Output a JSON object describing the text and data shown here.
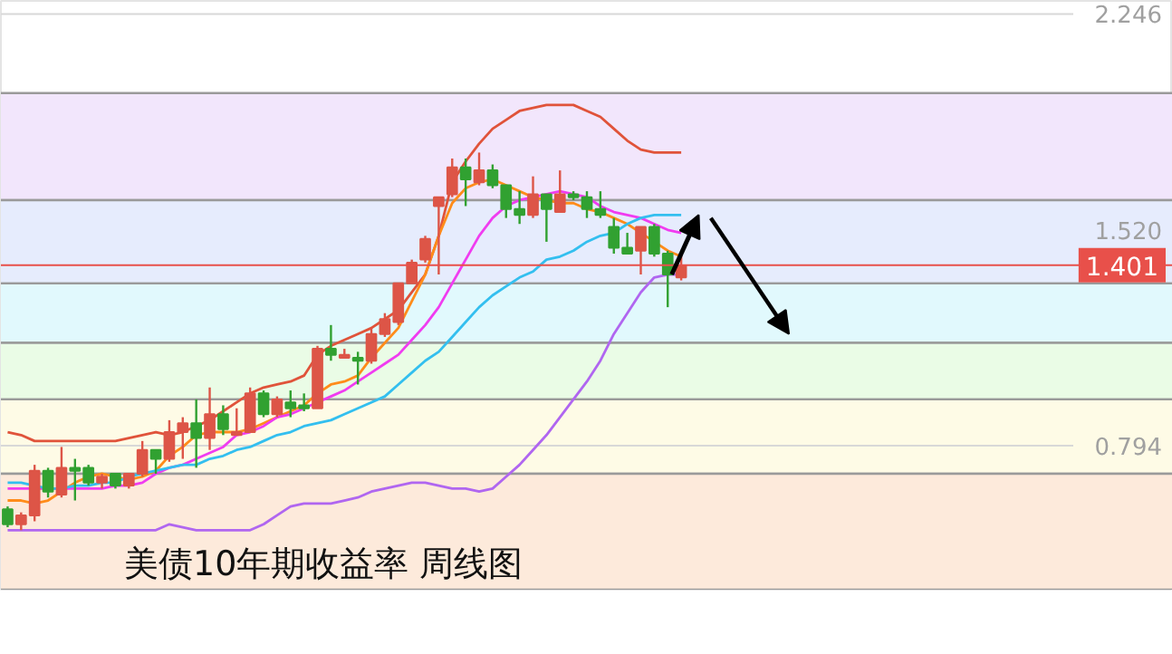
{
  "chart_data": {
    "type": "candlestick",
    "title": "美债10年期收益率 周线图",
    "categories": [
      null,
      null,
      null,
      null,
      null,
      null,
      null,
      null,
      null,
      null,
      null,
      null,
      null,
      null,
      null,
      null,
      null,
      null,
      null,
      null,
      null,
      null,
      null,
      null,
      null,
      null,
      null,
      null,
      null,
      null,
      null,
      null,
      null,
      null,
      null,
      null,
      null,
      null,
      null,
      null,
      null,
      null,
      null,
      null,
      null,
      null,
      null,
      null,
      null,
      null,
      null,
      null,
      null,
      null,
      null,
      null,
      null,
      null,
      null,
      null,
      null,
      null,
      null,
      null,
      null,
      null,
      null,
      null,
      null,
      null,
      null,
      null,
      null,
      null,
      null,
      null,
      null,
      null,
      null,
      null,
      null,
      null,
      null,
      null,
      null,
      null,
      null
    ],
    "ohlc": [
      [
        0.58,
        0.59,
        0.52,
        0.53
      ],
      [
        0.53,
        0.57,
        0.51,
        0.56
      ],
      [
        0.56,
        0.73,
        0.54,
        0.71
      ],
      [
        0.71,
        0.72,
        0.62,
        0.64
      ],
      [
        0.63,
        0.79,
        0.62,
        0.72
      ],
      [
        0.72,
        0.75,
        0.61,
        0.71
      ],
      [
        0.72,
        0.73,
        0.66,
        0.67
      ],
      [
        0.67,
        0.7,
        0.65,
        0.69
      ],
      [
        0.7,
        0.7,
        0.65,
        0.66
      ],
      [
        0.66,
        0.7,
        0.65,
        0.7
      ],
      [
        0.7,
        0.81,
        0.69,
        0.78
      ],
      [
        0.78,
        0.78,
        0.7,
        0.75
      ],
      [
        0.75,
        0.88,
        0.74,
        0.84
      ],
      [
        0.84,
        0.89,
        0.75,
        0.87
      ],
      [
        0.87,
        0.95,
        0.72,
        0.82
      ],
      [
        0.82,
        0.99,
        0.78,
        0.9
      ],
      [
        0.9,
        0.93,
        0.83,
        0.85
      ],
      [
        0.83,
        0.92,
        0.83,
        0.84
      ],
      [
        0.84,
        0.99,
        0.84,
        0.97
      ],
      [
        0.97,
        0.98,
        0.89,
        0.9
      ],
      [
        0.9,
        0.96,
        0.89,
        0.95
      ],
      [
        0.94,
        0.98,
        0.89,
        0.92
      ],
      [
        0.93,
        0.97,
        0.91,
        0.92
      ],
      [
        0.92,
        1.13,
        0.92,
        1.12
      ],
      [
        1.12,
        1.2,
        1.08,
        1.1
      ],
      [
        1.09,
        1.12,
        1.09,
        1.1
      ],
      [
        1.09,
        1.11,
        1.0,
        1.08
      ],
      [
        1.08,
        1.19,
        1.07,
        1.17
      ],
      [
        1.17,
        1.24,
        1.16,
        1.22
      ],
      [
        1.21,
        1.34,
        1.2,
        1.34
      ],
      [
        1.34,
        1.42,
        1.34,
        1.41
      ],
      [
        1.42,
        1.5,
        1.41,
        1.49
      ],
      [
        1.6,
        1.63,
        1.37,
        1.63
      ],
      [
        1.64,
        1.76,
        1.63,
        1.73
      ],
      [
        1.73,
        1.76,
        1.6,
        1.69
      ],
      [
        1.68,
        1.78,
        1.67,
        1.72
      ],
      [
        1.72,
        1.74,
        1.66,
        1.67
      ],
      [
        1.67,
        1.67,
        1.56,
        1.59
      ],
      [
        1.59,
        1.65,
        1.54,
        1.57
      ],
      [
        1.57,
        1.7,
        1.56,
        1.64
      ],
      [
        1.64,
        1.64,
        1.48,
        1.59
      ],
      [
        1.58,
        1.72,
        1.58,
        1.64
      ],
      [
        1.64,
        1.65,
        1.62,
        1.63
      ],
      [
        1.63,
        1.65,
        1.56,
        1.59
      ],
      [
        1.59,
        1.65,
        1.56,
        1.57
      ],
      [
        1.53,
        1.56,
        1.44,
        1.46
      ],
      [
        1.46,
        1.51,
        1.44,
        1.44
      ],
      [
        1.45,
        1.53,
        1.37,
        1.53
      ],
      [
        1.53,
        1.54,
        1.43,
        1.44
      ],
      [
        1.44,
        1.45,
        1.26,
        1.37
      ],
      [
        1.36,
        1.44,
        1.35,
        1.4
      ],
      null,
      null,
      null,
      null,
      null,
      null,
      null,
      null,
      null,
      null,
      null,
      null,
      null,
      null,
      null,
      null,
      null,
      null,
      null,
      null,
      null,
      null,
      null,
      null,
      null,
      null,
      null,
      null,
      null,
      null,
      null,
      null,
      null,
      null,
      null,
      null
    ],
    "colors": [
      "#31a131",
      "#dd5547",
      "#dd5547",
      "#31a131",
      "#dd5547",
      "#31a131",
      "#31a131",
      "#dd5547",
      "#31a131",
      "#dd5547",
      "#dd5547",
      "#31a131",
      "#dd5547",
      "#dd5547",
      "#31a131",
      "#dd5547",
      "#31a131",
      "#dd5547",
      "#dd5547",
      "#31a131",
      "#dd5547",
      "#31a131",
      "#31a131",
      "#dd5547",
      "#31a131",
      "#dd5547",
      "#31a131",
      "#dd5547",
      "#dd5547",
      "#dd5547",
      "#dd5547",
      "#dd5547",
      "#dd5547",
      "#dd5547",
      "#31a131",
      "#dd5547",
      "#31a131",
      "#31a131",
      "#31a131",
      "#dd5547",
      "#31a131",
      "#dd5547",
      "#31a131",
      "#31a131",
      "#31a131",
      "#31a131",
      "#31a131",
      "#dd5547",
      "#31a131",
      "#31a131",
      "#dd5547",
      null,
      null,
      null,
      null,
      null,
      null,
      null,
      null,
      null,
      null,
      null,
      null,
      null,
      null,
      null,
      null,
      null,
      null,
      null,
      null,
      null,
      null,
      null,
      null,
      null,
      null,
      null,
      null,
      null,
      null,
      null,
      null,
      null,
      null,
      null,
      null
    ],
    "series": [
      {
        "type": "line",
        "color": "#e0533a",
        "values": [
          0.84,
          0.83,
          0.81,
          0.81,
          0.81,
          0.81,
          0.81,
          0.81,
          0.81,
          0.82,
          0.83,
          0.84,
          0.83,
          0.84,
          0.86,
          0.88,
          0.91,
          0.94,
          0.97,
          0.99,
          1.0,
          1.01,
          1.03,
          1.1,
          1.13,
          1.15,
          1.17,
          1.19,
          1.22,
          1.25,
          1.31,
          1.37,
          1.5,
          1.68,
          1.75,
          1.81,
          1.86,
          1.89,
          1.92,
          1.93,
          1.94,
          1.94,
          1.94,
          1.92,
          1.9,
          1.86,
          1.82,
          1.79,
          1.78,
          1.78,
          1.78,
          null,
          null,
          null,
          null,
          null,
          null,
          null,
          null,
          null,
          null,
          null,
          null,
          null,
          null,
          null,
          null,
          null,
          null,
          null,
          null,
          null,
          null,
          null,
          null,
          null,
          null,
          null,
          null,
          null,
          null,
          null,
          null,
          null,
          null,
          null,
          null
        ]
      },
      {
        "type": "line",
        "color": "#b066f0",
        "values": [
          0.51,
          0.51,
          0.51,
          0.51,
          0.51,
          0.51,
          0.51,
          0.51,
          0.51,
          0.51,
          0.51,
          0.51,
          0.53,
          0.52,
          0.51,
          0.51,
          0.51,
          0.51,
          0.51,
          0.53,
          0.56,
          0.59,
          0.6,
          0.6,
          0.6,
          0.61,
          0.62,
          0.64,
          0.65,
          0.66,
          0.67,
          0.67,
          0.66,
          0.65,
          0.65,
          0.64,
          0.65,
          0.69,
          0.73,
          0.78,
          0.83,
          0.89,
          0.95,
          1.01,
          1.08,
          1.17,
          1.24,
          1.31,
          1.36,
          1.37,
          1.37,
          null,
          null,
          null,
          null,
          null,
          null,
          null,
          null,
          null,
          null,
          null,
          null,
          null,
          null,
          null,
          null,
          null,
          null,
          null,
          null,
          null,
          null,
          null,
          null,
          null,
          null,
          null,
          null,
          null,
          null,
          null,
          null,
          null,
          null,
          null,
          null
        ]
      },
      {
        "type": "line",
        "color": "#ff8c1a",
        "values": [
          0.61,
          0.61,
          0.6,
          0.61,
          0.64,
          0.67,
          0.69,
          0.7,
          0.69,
          0.68,
          0.69,
          0.71,
          0.76,
          0.79,
          0.83,
          0.84,
          0.84,
          0.84,
          0.85,
          0.87,
          0.89,
          0.91,
          0.93,
          0.97,
          1.0,
          1.01,
          1.03,
          1.09,
          1.14,
          1.19,
          1.28,
          1.37,
          1.5,
          1.61,
          1.66,
          1.68,
          1.69,
          1.67,
          1.65,
          1.63,
          1.62,
          1.61,
          1.61,
          1.59,
          1.58,
          1.56,
          1.54,
          1.51,
          1.48,
          1.45,
          1.43,
          null,
          null,
          null,
          null,
          null,
          null,
          null,
          null,
          null,
          null,
          null,
          null,
          null,
          null,
          null,
          null,
          null,
          null,
          null,
          null,
          null,
          null,
          null,
          null,
          null,
          null,
          null,
          null,
          null,
          null,
          null,
          null,
          null,
          null,
          null,
          null
        ]
      },
      {
        "type": "line",
        "color": "#f03cf0",
        "values": [
          0.65,
          0.65,
          0.65,
          0.65,
          0.65,
          0.65,
          0.65,
          0.65,
          0.66,
          0.66,
          0.67,
          0.7,
          0.72,
          0.73,
          0.75,
          0.77,
          0.79,
          0.83,
          0.84,
          0.86,
          0.89,
          0.9,
          0.92,
          0.94,
          0.96,
          0.98,
          1.01,
          1.04,
          1.07,
          1.1,
          1.15,
          1.2,
          1.26,
          1.34,
          1.42,
          1.5,
          1.56,
          1.6,
          1.62,
          1.63,
          1.64,
          1.65,
          1.64,
          1.63,
          1.6,
          1.58,
          1.57,
          1.56,
          1.54,
          1.52,
          1.51,
          null,
          null,
          null,
          null,
          null,
          null,
          null,
          null,
          null,
          null,
          null,
          null,
          null,
          null,
          null,
          null,
          null,
          null,
          null,
          null,
          null,
          null,
          null,
          null,
          null,
          null,
          null,
          null,
          null,
          null,
          null,
          null,
          null,
          null,
          null,
          null
        ]
      },
      {
        "type": "line",
        "color": "#33bfef",
        "values": [
          0.67,
          0.67,
          0.66,
          0.65,
          0.65,
          0.66,
          0.66,
          0.67,
          0.67,
          0.69,
          0.7,
          0.71,
          0.72,
          0.73,
          0.73,
          0.75,
          0.76,
          0.78,
          0.79,
          0.81,
          0.83,
          0.84,
          0.86,
          0.87,
          0.88,
          0.9,
          0.92,
          0.94,
          0.96,
          1.0,
          1.04,
          1.08,
          1.11,
          1.16,
          1.21,
          1.26,
          1.3,
          1.33,
          1.36,
          1.38,
          1.42,
          1.43,
          1.45,
          1.48,
          1.5,
          1.51,
          1.54,
          1.56,
          1.57,
          1.57,
          1.57,
          null,
          null,
          null,
          null,
          null,
          null,
          null,
          null,
          null,
          null,
          null,
          null,
          null,
          null,
          null,
          null,
          null,
          null,
          null,
          null,
          null,
          null,
          null,
          null,
          null,
          null,
          null,
          null,
          null,
          null,
          null,
          null,
          null,
          null,
          null,
          null
        ]
      }
    ],
    "bands": [
      {
        "axis": "y",
        "from": 1.62,
        "to": 1.98,
        "color": "#f2e6fc"
      },
      {
        "axis": "y",
        "from": 1.34,
        "to": 1.62,
        "color": "#e6ecfd"
      },
      {
        "axis": "y",
        "from": 1.14,
        "to": 1.34,
        "color": "#e1f9fd"
      },
      {
        "axis": "y",
        "from": 0.95,
        "to": 1.14,
        "color": "#eafce6"
      },
      {
        "axis": "y",
        "from": 0.7,
        "to": 0.95,
        "color": "#fefbe6"
      },
      {
        "axis": "y",
        "from": 0.31,
        "to": 0.7,
        "color": "#fdeadb"
      }
    ],
    "ref_lines": [
      {
        "axis": "y",
        "value": 1.401,
        "label": "1.401",
        "color": "#e8504a"
      }
    ],
    "ylim": [
      0.31,
      2.29
    ],
    "yticks": [
      0.794,
      {
        "value": 1.52,
        "label": "1.520"
      },
      2.246
    ],
    "tick_labels": "y",
    "grid": "y"
  }
}
